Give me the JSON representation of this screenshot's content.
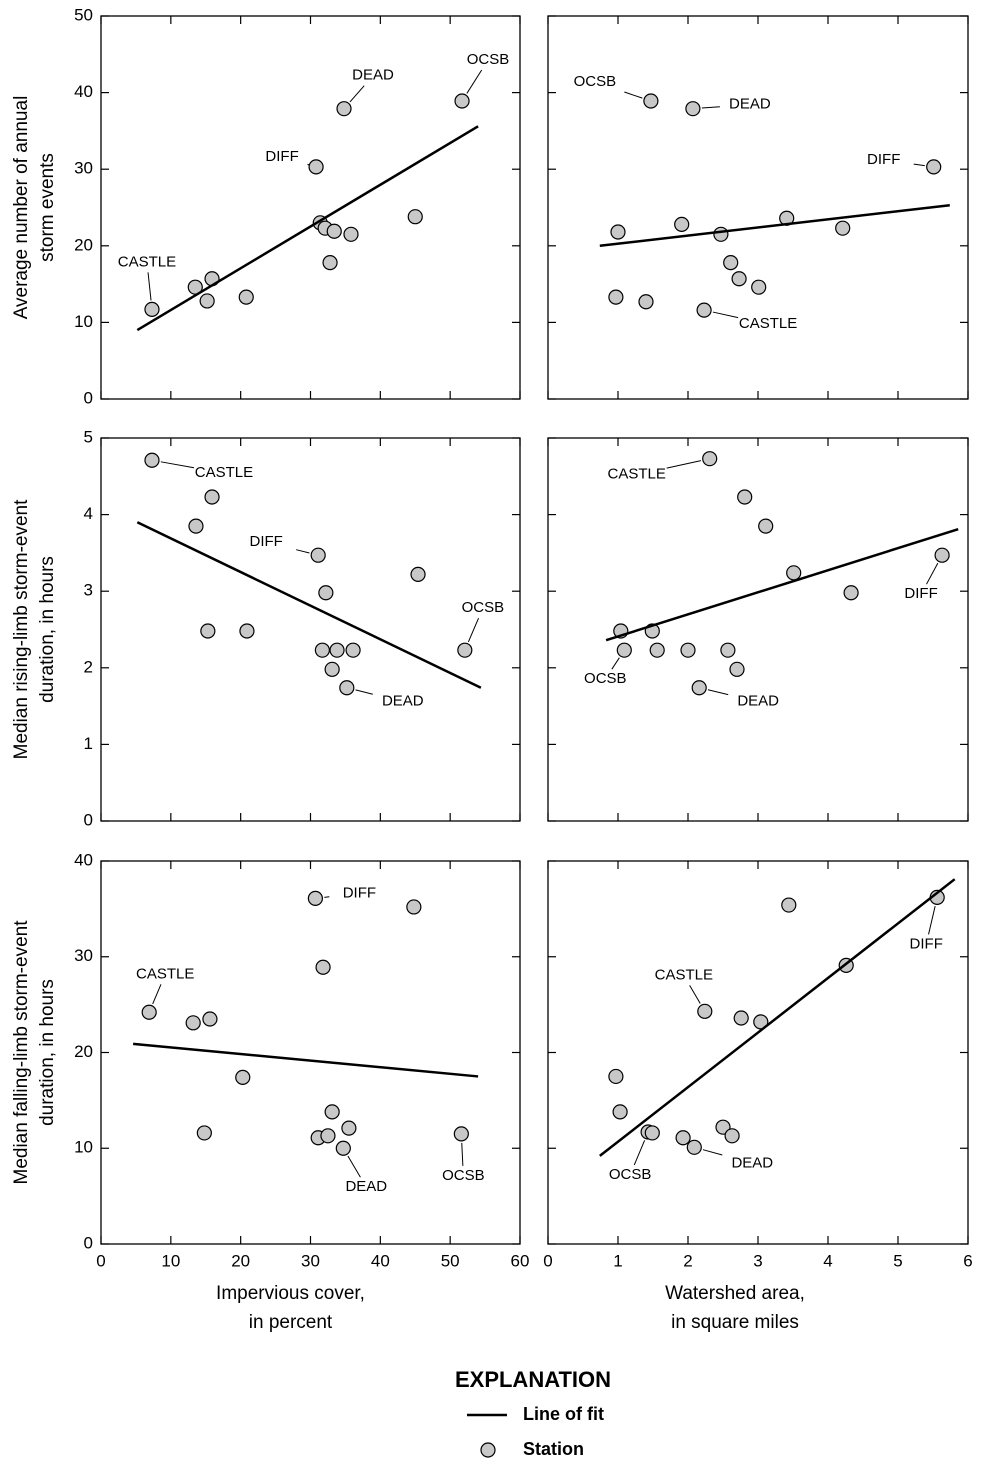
{
  "chart_data": [
    {
      "type": "scatter",
      "ylabel": [
        "Average number of annual",
        "storm events"
      ],
      "xlim": [
        0,
        60
      ],
      "ylim": [
        0,
        50
      ],
      "xticks": [
        0,
        10,
        20,
        30,
        40,
        50,
        60
      ],
      "yticks": [
        0,
        10,
        20,
        30,
        40,
        50
      ],
      "series": [
        {
          "name": "Station",
          "color": "#c8c8c8",
          "labels": [
            "CASTLE",
            "DIFF",
            "DEAD",
            "OCSB",
            null,
            null,
            null,
            null,
            null,
            null,
            null,
            null,
            null,
            null
          ],
          "x": [
            7.3,
            30.8,
            34.8,
            51.7,
            13.5,
            15.2,
            15.9,
            20.8,
            31.4,
            32.1,
            33.4,
            35.8,
            32.8,
            45.0
          ],
          "values": [
            11.7,
            30.3,
            37.9,
            38.9,
            14.6,
            12.8,
            15.7,
            13.3,
            23.0,
            22.3,
            21.9,
            21.5,
            17.8,
            23.8
          ]
        },
        {
          "name": "Line of fit",
          "color": "#000000",
          "x": [
            5.2,
            54.0
          ],
          "values": [
            9.0,
            35.6
          ]
        }
      ]
    },
    {
      "type": "scatter",
      "xlim": [
        0,
        6
      ],
      "ylim": [
        0,
        50
      ],
      "xticks": [
        0,
        1,
        2,
        3,
        4,
        5,
        6
      ],
      "yticks": [
        0,
        10,
        20,
        30,
        40,
        50
      ],
      "series": [
        {
          "color": "#c8c8c8",
          "labels": [
            "CASTLE",
            "DIFF",
            "DEAD",
            "OCSB",
            null,
            null,
            null,
            null,
            null,
            null,
            null,
            null,
            null,
            null
          ],
          "x": [
            2.23,
            5.51,
            2.07,
            1.47,
            1.0,
            1.91,
            2.47,
            3.41,
            4.21,
            2.61,
            2.73,
            3.01,
            0.97,
            1.4
          ],
          "values": [
            11.6,
            30.3,
            37.9,
            38.9,
            21.8,
            22.8,
            21.5,
            23.6,
            22.3,
            17.8,
            15.7,
            14.6,
            13.3,
            12.7
          ]
        },
        {
          "color": "#000000",
          "x": [
            0.74,
            5.74
          ],
          "values": [
            20.0,
            25.3
          ]
        }
      ]
    },
    {
      "type": "scatter",
      "ylabel": [
        "Median rising-limb storm-event",
        "duration, in hours"
      ],
      "xlim": [
        0,
        60
      ],
      "ylim": [
        0,
        5
      ],
      "xticks": [
        0,
        10,
        20,
        30,
        40,
        50,
        60
      ],
      "yticks": [
        0,
        1,
        2,
        3,
        4,
        5
      ],
      "series": [
        {
          "color": "#c8c8c8",
          "labels": [
            "CASTLE",
            "DIFF",
            "DEAD",
            "OCSB",
            null,
            null,
            null,
            null,
            null,
            null,
            null,
            null,
            null,
            null
          ],
          "x": [
            7.3,
            31.1,
            35.2,
            52.1,
            15.9,
            13.6,
            45.4,
            32.2,
            15.3,
            20.9,
            31.7,
            33.8,
            36.1,
            33.1
          ],
          "values": [
            4.71,
            3.47,
            1.74,
            2.23,
            4.23,
            3.85,
            3.22,
            2.98,
            2.48,
            2.48,
            2.23,
            2.23,
            2.23,
            1.98
          ]
        },
        {
          "color": "#000000",
          "x": [
            5.2,
            54.4
          ],
          "values": [
            3.9,
            1.74
          ]
        }
      ]
    },
    {
      "type": "scatter",
      "xlim": [
        0,
        6
      ],
      "ylim": [
        0,
        5
      ],
      "xticks": [
        0,
        1,
        2,
        3,
        4,
        5,
        6
      ],
      "yticks": [
        0,
        1,
        2,
        3,
        4,
        5
      ],
      "series": [
        {
          "color": "#c8c8c8",
          "labels": [
            "CASTLE",
            "DIFF",
            "DEAD",
            "OCSB",
            null,
            null,
            null,
            null,
            null,
            null,
            null,
            null,
            null,
            null
          ],
          "x": [
            2.31,
            5.63,
            2.16,
            1.09,
            2.81,
            3.11,
            3.51,
            4.33,
            1.04,
            1.49,
            1.56,
            2.0,
            2.57,
            2.7
          ],
          "values": [
            4.73,
            3.47,
            1.74,
            2.23,
            4.23,
            3.85,
            3.24,
            2.98,
            2.48,
            2.48,
            2.23,
            2.23,
            2.23,
            1.98
          ]
        },
        {
          "color": "#000000",
          "x": [
            0.83,
            5.86
          ],
          "values": [
            2.36,
            3.81
          ]
        }
      ]
    },
    {
      "type": "scatter",
      "ylabel": [
        "Median falling-limb storm-event",
        "duration, in hours"
      ],
      "xlabel": [
        "Impervious cover,",
        "in percent"
      ],
      "xlim": [
        0,
        60
      ],
      "ylim": [
        0,
        40
      ],
      "xticks": [
        0,
        10,
        20,
        30,
        40,
        50,
        60
      ],
      "yticks": [
        0,
        10,
        20,
        30,
        40
      ],
      "series": [
        {
          "color": "#c8c8c8",
          "labels": [
            "CASTLE",
            "DIFF",
            "DEAD",
            "OCSB",
            null,
            null,
            null,
            null,
            null,
            null,
            null,
            null,
            null,
            null
          ],
          "x": [
            6.9,
            30.7,
            34.7,
            51.6,
            44.8,
            31.8,
            13.2,
            15.6,
            20.3,
            14.8,
            33.1,
            35.5,
            31.1,
            32.5
          ],
          "values": [
            24.2,
            36.1,
            10.0,
            11.5,
            35.2,
            28.9,
            23.1,
            23.5,
            17.4,
            11.6,
            13.8,
            12.1,
            11.1,
            11.3
          ]
        },
        {
          "color": "#000000",
          "x": [
            4.6,
            54.0
          ],
          "values": [
            20.9,
            17.5
          ]
        }
      ]
    },
    {
      "type": "scatter",
      "xlabel": [
        "Watershed area,",
        "in square miles"
      ],
      "xlim": [
        0,
        6
      ],
      "ylim": [
        0,
        40
      ],
      "xticks": [
        0,
        1,
        2,
        3,
        4,
        5,
        6
      ],
      "yticks": [
        0,
        10,
        20,
        30,
        40
      ],
      "series": [
        {
          "color": "#c8c8c8",
          "labels": [
            "CASTLE",
            "DIFF",
            "DEAD",
            "OCSB",
            null,
            null,
            null,
            null,
            null,
            null,
            null,
            null,
            null,
            null
          ],
          "x": [
            2.24,
            5.56,
            2.09,
            1.43,
            3.44,
            4.26,
            2.76,
            3.04,
            0.97,
            1.03,
            1.49,
            1.93,
            2.5,
            2.63
          ],
          "values": [
            24.3,
            36.2,
            10.1,
            11.7,
            35.4,
            29.1,
            23.6,
            23.2,
            17.5,
            13.8,
            11.6,
            11.1,
            12.2,
            11.3
          ]
        },
        {
          "color": "#000000",
          "x": [
            0.74,
            5.81
          ],
          "values": [
            9.2,
            38.1
          ]
        }
      ]
    }
  ],
  "legend": {
    "title": "EXPLANATION"
  }
}
